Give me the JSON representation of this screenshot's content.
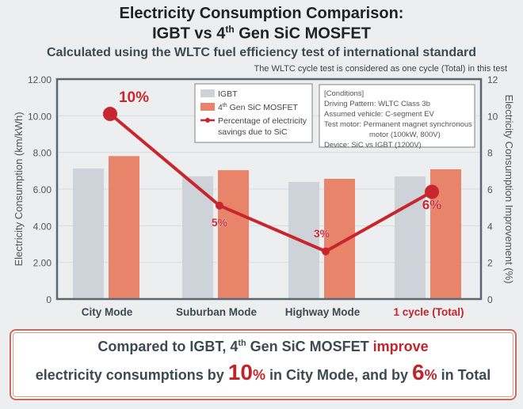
{
  "title_line1": "Electricity Consumption Comparison:",
  "title_line2_a": "IGBT vs 4",
  "title_line2_sup": "th",
  "title_line2_b": " Gen SiC MOSFET",
  "subtitle": "Calculated using the WLTC fuel efficiency test of international standard",
  "note": "The WLTC cycle test is considered as one cycle (Total) in this test",
  "colors": {
    "igbt": "#cdd3d8",
    "sic": "#e8846a",
    "line": "#c8252d",
    "highlight": "#c0252b"
  },
  "chart_data": {
    "type": "bar",
    "categories": [
      "City Mode",
      "Suburban Mode",
      "Highway Mode",
      "1 cycle (Total)"
    ],
    "series": [
      {
        "name": "IGBT",
        "values": [
          7.12,
          6.7,
          6.39,
          6.69
        ]
      },
      {
        "name": "4th Gen SiC MOSFET",
        "values": [
          7.8,
          7.03,
          6.56,
          7.08
        ]
      }
    ],
    "line_series": {
      "name": "Percentage of electricity savings due to SiC",
      "values": [
        10.1,
        5.1,
        2.6,
        5.85
      ],
      "labels": [
        "10%",
        "5%",
        "3%",
        "6%"
      ],
      "axis": "right"
    },
    "ylabel": "Electricity Consumption (km/kWh)",
    "y2label": "Electricity Consumption Improvement (%)",
    "ylim": [
      0,
      12
    ],
    "y2lim": [
      0,
      12
    ],
    "yticks": [
      "0",
      "2.00",
      "4.00",
      "6.00",
      "8.00",
      "10.00",
      "12.00"
    ],
    "y2ticks": [
      "0",
      "2",
      "4",
      "6",
      "8",
      "10",
      "12"
    ],
    "grid": true,
    "legend": {
      "placement": "top-center",
      "igbt": "IGBT",
      "sic_a": "4",
      "sic_sup": "th",
      "sic_b": " Gen SiC MOSFET",
      "line_1": "Percentage of electricity",
      "line_2": "savings due to SiC"
    },
    "conditions": [
      "[Conditions]",
      "Driving Pattern: WLTC Class 3b",
      "Assumed vehicle: C-segment EV",
      "Test motor: Permanent magnet synchronous",
      "motor (100kW, 800V)",
      "Device: SiC vs IGBT (1200V)"
    ]
  },
  "summary": {
    "l1_a": "Compared to IGBT, 4",
    "l1_sup": "th",
    "l1_b": " Gen SiC MOSFET ",
    "l1_red": "improve",
    "l2_a": "electricity consumptions by ",
    "l2_big1": "10",
    "l2_pct1": "%",
    "l2_b": " in City Mode, and by ",
    "l2_big2": "6",
    "l2_pct2": "%",
    "l2_c": " in Total"
  }
}
